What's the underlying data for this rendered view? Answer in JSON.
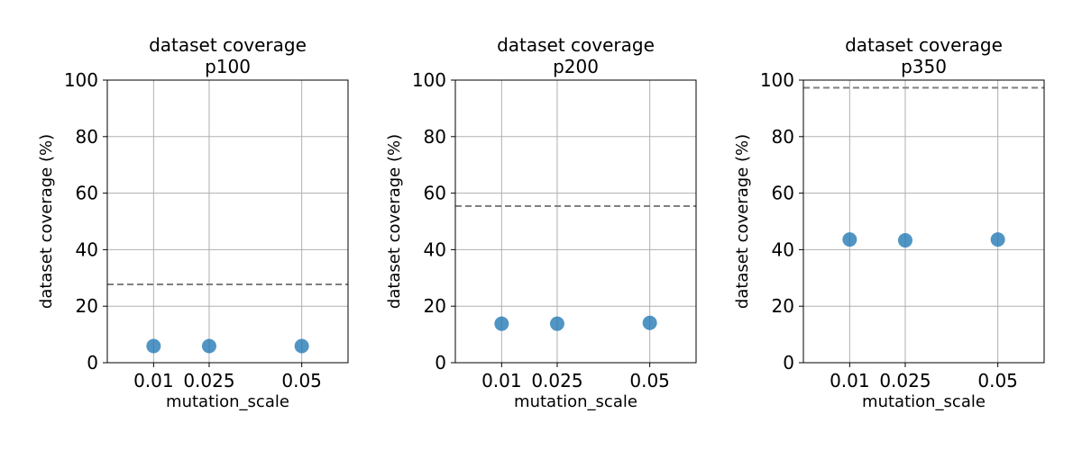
{
  "chart_data": [
    {
      "type": "scatter",
      "title": "dataset coverage\np100",
      "xlabel": "mutation_scale",
      "ylabel": "dataset coverage (%)",
      "ylim": [
        0,
        100
      ],
      "xlim": [
        -0.0025,
        0.0625
      ],
      "xticks": [
        0.01,
        0.025,
        0.05
      ],
      "xtick_labels": [
        "0.01",
        "0.025",
        "0.05"
      ],
      "yticks": [
        0,
        20,
        40,
        60,
        80,
        100
      ],
      "grid": true,
      "points": [
        {
          "x": 0.01,
          "y": 5.9
        },
        {
          "x": 0.025,
          "y": 5.9
        },
        {
          "x": 0.05,
          "y": 5.9
        }
      ],
      "reference_line": {
        "y": 27.7,
        "style": "dashed"
      },
      "color": "#1f77b4"
    },
    {
      "type": "scatter",
      "title": "dataset coverage\np200",
      "xlabel": "mutation_scale",
      "ylabel": "dataset coverage (%)",
      "ylim": [
        0,
        100
      ],
      "xlim": [
        -0.0025,
        0.0625
      ],
      "xticks": [
        0.01,
        0.025,
        0.05
      ],
      "xtick_labels": [
        "0.01",
        "0.025",
        "0.05"
      ],
      "yticks": [
        0,
        20,
        40,
        60,
        80,
        100
      ],
      "grid": true,
      "points": [
        {
          "x": 0.01,
          "y": 13.8
        },
        {
          "x": 0.025,
          "y": 13.8
        },
        {
          "x": 0.05,
          "y": 14.1
        }
      ],
      "reference_line": {
        "y": 55.4,
        "style": "dashed"
      },
      "color": "#1f77b4"
    },
    {
      "type": "scatter",
      "title": "dataset coverage\np350",
      "xlabel": "mutation_scale",
      "ylabel": "dataset coverage (%)",
      "ylim": [
        0,
        100
      ],
      "xlim": [
        -0.0025,
        0.0625
      ],
      "xticks": [
        0.01,
        0.025,
        0.05
      ],
      "xtick_labels": [
        "0.01",
        "0.025",
        "0.05"
      ],
      "yticks": [
        0,
        20,
        40,
        60,
        80,
        100
      ],
      "grid": true,
      "points": [
        {
          "x": 0.01,
          "y": 43.6
        },
        {
          "x": 0.025,
          "y": 43.3
        },
        {
          "x": 0.05,
          "y": 43.6
        }
      ],
      "reference_line": {
        "y": 97.3,
        "style": "dashed"
      },
      "color": "#1f77b4"
    }
  ]
}
